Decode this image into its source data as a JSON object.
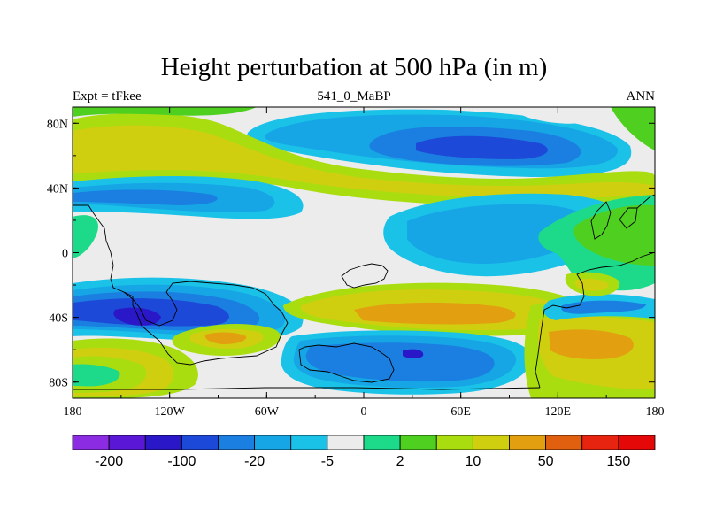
{
  "header": {
    "title": "Height perturbation at 500 hPa (in m)",
    "left_label": "Expt = tFkee",
    "center_label": "541_0_MaBP",
    "right_label": "ANN"
  },
  "axes": {
    "y_ticks": [
      {
        "label": "80N",
        "lat": 80
      },
      {
        "label": "40N",
        "lat": 40
      },
      {
        "label": "0",
        "lat": 0
      },
      {
        "label": "40S",
        "lat": -40
      },
      {
        "label": "80S",
        "lat": -80
      }
    ],
    "x_ticks": [
      {
        "label": "180",
        "lon": -180
      },
      {
        "label": "120W",
        "lon": -120
      },
      {
        "label": "60W",
        "lon": -60
      },
      {
        "label": "0",
        "lon": 0
      },
      {
        "label": "60E",
        "lon": 60
      },
      {
        "label": "120E",
        "lon": 120
      },
      {
        "label": "180",
        "lon": 180
      }
    ]
  },
  "colorbar": {
    "colors": [
      "#8b2be2",
      "#5a18d6",
      "#2a18c8",
      "#1d49d9",
      "#1a7fe0",
      "#16a6e6",
      "#1ac2e8",
      "#ececec",
      "#1dda8a",
      "#4fd020",
      "#a9dd10",
      "#cfcf10",
      "#e2a010",
      "#e06010",
      "#e62410",
      "#e40808"
    ],
    "labels": [
      {
        "text": "-200",
        "boundary": 1
      },
      {
        "text": "-100",
        "boundary": 3
      },
      {
        "text": "-20",
        "boundary": 5
      },
      {
        "text": "-5",
        "boundary": 7
      },
      {
        "text": "2",
        "boundary": 9
      },
      {
        "text": "10",
        "boundary": 11
      },
      {
        "text": "50",
        "boundary": 13
      },
      {
        "text": "150",
        "boundary": 15
      }
    ]
  }
}
